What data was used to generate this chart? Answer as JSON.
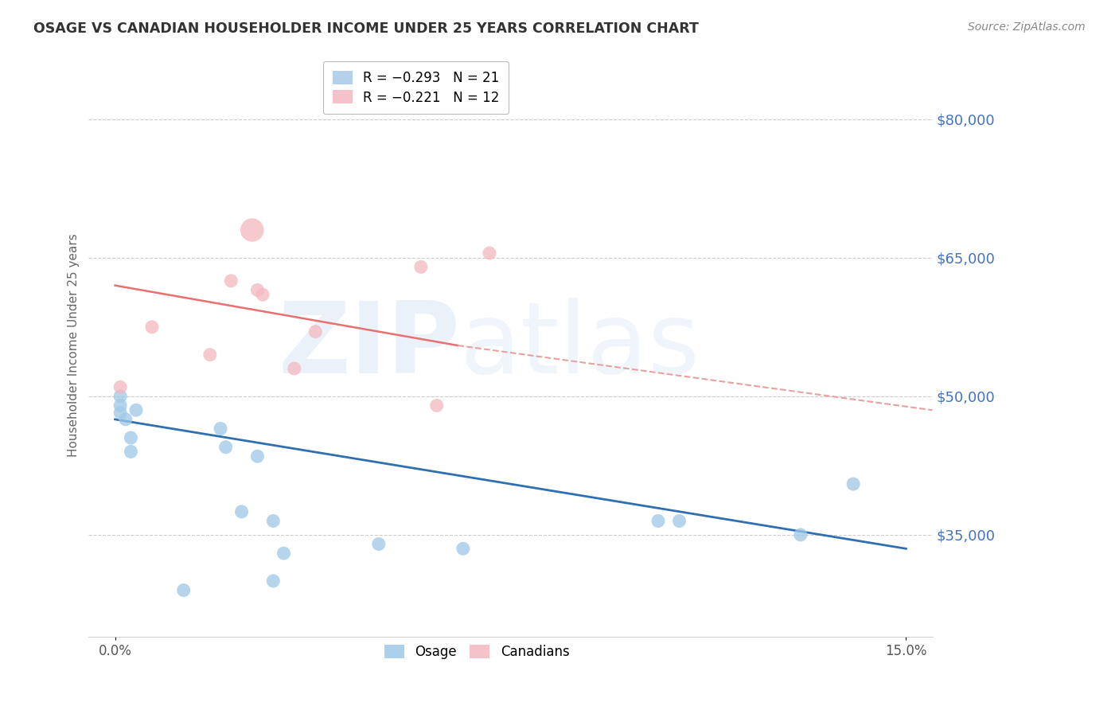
{
  "title": "OSAGE VS CANADIAN HOUSEHOLDER INCOME UNDER 25 YEARS CORRELATION CHART",
  "source": "Source: ZipAtlas.com",
  "ylabel": "Householder Income Under 25 years",
  "xlabel_ticks": [
    "0.0%",
    "15.0%"
  ],
  "xlim": [
    -0.005,
    0.155
  ],
  "ylim": [
    24000,
    87000
  ],
  "yticks": [
    35000,
    50000,
    65000,
    80000
  ],
  "ytick_labels": [
    "$35,000",
    "$50,000",
    "$65,000",
    "$80,000"
  ],
  "watermark_zip": "ZIP",
  "watermark_atlas": "atlas",
  "legend_entries": [
    {
      "label": "R = −0.293   N = 21",
      "color": "#a8c8e8"
    },
    {
      "label": "R = −0.221   N = 12",
      "color": "#f4b8c0"
    }
  ],
  "osage_scatter": {
    "x": [
      0.001,
      0.001,
      0.001,
      0.002,
      0.003,
      0.003,
      0.004,
      0.013,
      0.02,
      0.021,
      0.024,
      0.027,
      0.03,
      0.03,
      0.032,
      0.05,
      0.066,
      0.103,
      0.107,
      0.13,
      0.14
    ],
    "y": [
      50000,
      49000,
      48200,
      47500,
      45500,
      44000,
      48500,
      29000,
      46500,
      44500,
      37500,
      43500,
      36500,
      30000,
      33000,
      34000,
      33500,
      36500,
      36500,
      35000,
      40500
    ],
    "sizes": [
      150,
      150,
      150,
      150,
      150,
      150,
      150,
      150,
      150,
      150,
      150,
      150,
      150,
      150,
      150,
      150,
      150,
      150,
      150,
      150,
      150
    ],
    "color": "#9ec8e8",
    "alpha": 0.75
  },
  "canadian_scatter": {
    "x": [
      0.001,
      0.007,
      0.018,
      0.022,
      0.026,
      0.027,
      0.028,
      0.034,
      0.038,
      0.058,
      0.061,
      0.071
    ],
    "y": [
      51000,
      57500,
      54500,
      62500,
      68000,
      61500,
      61000,
      53000,
      57000,
      64000,
      49000,
      65500
    ],
    "sizes": [
      150,
      150,
      150,
      150,
      450,
      150,
      150,
      150,
      150,
      150,
      150,
      150
    ],
    "color": "#f4b8c0",
    "alpha": 0.75
  },
  "osage_trendline": {
    "x": [
      0.0,
      0.15
    ],
    "y": [
      47500,
      33500
    ],
    "color": "#3070b0",
    "linewidth": 2.0
  },
  "canadian_trendline_solid": {
    "x": [
      0.0,
      0.065
    ],
    "y": [
      62000,
      55500
    ],
    "color": "#e87070",
    "linewidth": 1.8
  },
  "canadian_trendline_dashed": {
    "x": [
      0.065,
      0.155
    ],
    "y": [
      55500,
      48500
    ],
    "color": "#e8a0a0",
    "linewidth": 1.5,
    "linestyle": "--"
  },
  "background_color": "#ffffff",
  "grid_color": "#cccccc",
  "title_color": "#333333",
  "axis_label_color": "#666666",
  "ytick_color": "#4472c4",
  "source_color": "#888888",
  "watermark_color": "#c5d8f0",
  "watermark_alpha": 0.35
}
